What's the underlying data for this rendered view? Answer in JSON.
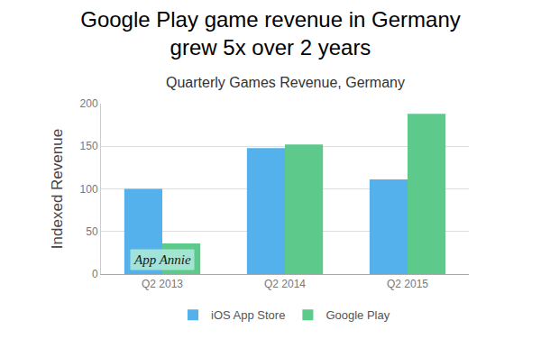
{
  "chart_data": {
    "type": "bar",
    "title": [
      "Google Play game revenue in Germany",
      "grew 5x over 2 years"
    ],
    "subtitle": "Quarterly Games Revenue, Germany",
    "y_label": "Indexed Revenue",
    "categories": [
      "Q2 2013",
      "Q2 2014",
      "Q2 2015"
    ],
    "series": [
      {
        "name": "iOS App Store",
        "color": "#55b1ec",
        "values": [
          100,
          148,
          111
        ]
      },
      {
        "name": "Google Play",
        "color": "#5dc98b",
        "values": [
          36,
          152,
          188
        ]
      }
    ],
    "ylim": [
      0,
      200
    ],
    "yticks": [
      0,
      50,
      100,
      150,
      200
    ],
    "grid": true,
    "legend": "bottom",
    "annotations": [
      "App Annie"
    ]
  }
}
